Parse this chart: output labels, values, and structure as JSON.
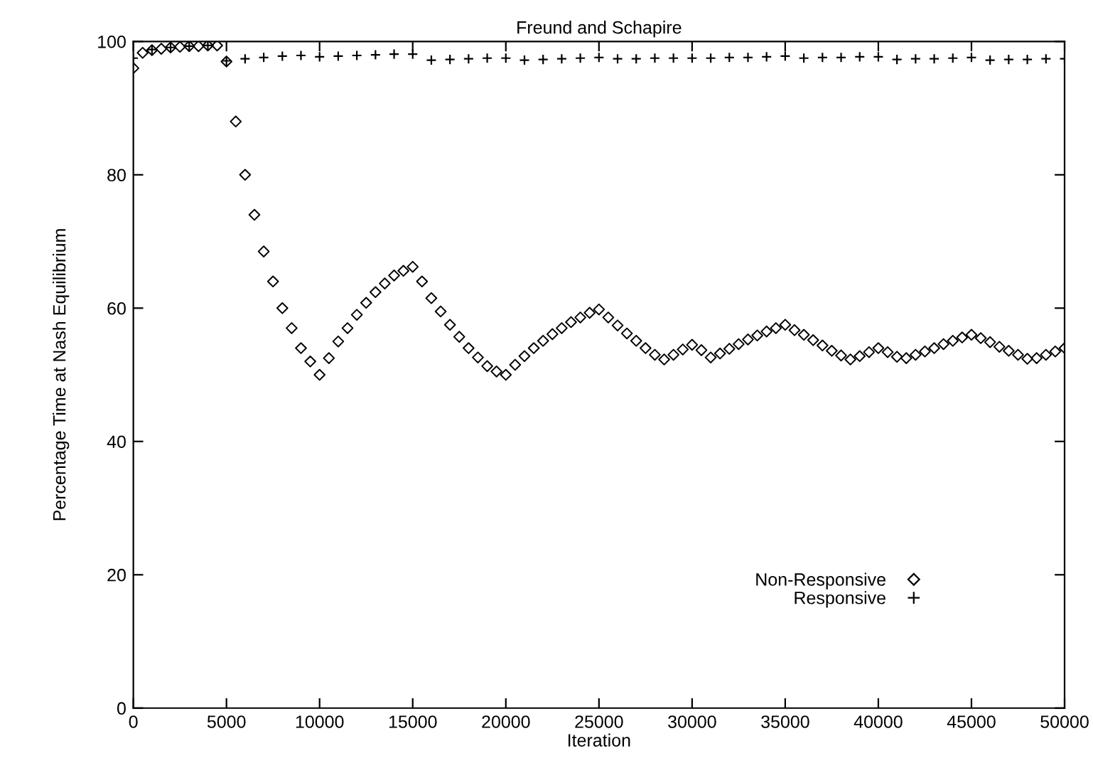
{
  "chart_data": {
    "type": "scatter",
    "title": "Freund and Schapire",
    "xlabel": "Iteration",
    "ylabel": "Percentage Time at Nash Equilibrium",
    "xlim": [
      0,
      50000
    ],
    "ylim": [
      0,
      100
    ],
    "xticks": [
      0,
      5000,
      10000,
      15000,
      20000,
      25000,
      30000,
      35000,
      40000,
      45000,
      50000
    ],
    "yticks": [
      0,
      20,
      40,
      60,
      80,
      100
    ],
    "grid": false,
    "legend": "lower right",
    "series": [
      {
        "name": "Non-Responsive",
        "color": "#000000",
        "marker": "diamond",
        "x": [
          0,
          500,
          1000,
          1500,
          2000,
          2500,
          3000,
          3500,
          4000,
          4500,
          5000,
          5500,
          6000,
          6500,
          7000,
          7500,
          8000,
          8500,
          9000,
          9500,
          10000,
          10500,
          11000,
          11500,
          12000,
          12500,
          13000,
          13500,
          14000,
          14500,
          15000,
          15500,
          16000,
          16500,
          17000,
          17500,
          18000,
          18500,
          19000,
          19500,
          20000,
          20500,
          21000,
          21500,
          22000,
          22500,
          23000,
          23500,
          24000,
          24500,
          25000,
          25500,
          26000,
          26500,
          27000,
          27500,
          28000,
          28500,
          29000,
          29500,
          30000,
          30500,
          31000,
          31500,
          32000,
          32500,
          33000,
          33500,
          34000,
          34500,
          35000,
          35500,
          36000,
          36500,
          37000,
          37500,
          38000,
          38500,
          39000,
          39500,
          40000,
          40500,
          41000,
          41500,
          42000,
          42500,
          43000,
          43500,
          44000,
          44500,
          45000,
          45500,
          46000,
          46500,
          47000,
          47500,
          48000,
          48500,
          49000,
          49500,
          50000
        ],
        "values": [
          96,
          98.3,
          98.7,
          98.9,
          99.1,
          99.2,
          99.3,
          99.3,
          99.4,
          99.4,
          97,
          88,
          80,
          74,
          68.5,
          64,
          60,
          57,
          54,
          52,
          50,
          52.5,
          55,
          57,
          59,
          60.8,
          62.4,
          63.7,
          64.9,
          65.6,
          66.2,
          64,
          61.5,
          59.5,
          57.5,
          55.7,
          54,
          52.6,
          51.3,
          50.5,
          50,
          51.5,
          52.8,
          54,
          55.1,
          56.1,
          57,
          57.9,
          58.6,
          59.3,
          59.8,
          58.6,
          57.4,
          56.2,
          55.1,
          54,
          53,
          52.3,
          53,
          53.8,
          54.5,
          53.7,
          52.6,
          53.2,
          53.9,
          54.6,
          55.3,
          55.9,
          56.5,
          57,
          57.5,
          56.7,
          56,
          55.2,
          54.4,
          53.6,
          52.9,
          52.3,
          52.8,
          53.4,
          54,
          53.4,
          52.7,
          52.5,
          53,
          53.5,
          54,
          54.6,
          55.1,
          55.6,
          56,
          55.5,
          54.9,
          54.2,
          53.6,
          53,
          52.4,
          52.5,
          53,
          53.5,
          54
        ]
      },
      {
        "name": "Responsive",
        "color": "#000000",
        "marker": "cross",
        "x": [
          0,
          1000,
          2000,
          3000,
          4000,
          5000,
          6000,
          7000,
          8000,
          9000,
          10000,
          11000,
          12000,
          13000,
          14000,
          15000,
          16000,
          17000,
          18000,
          19000,
          20000,
          21000,
          22000,
          23000,
          24000,
          25000,
          26000,
          27000,
          28000,
          29000,
          30000,
          31000,
          32000,
          33000,
          34000,
          35000,
          36000,
          37000,
          38000,
          39000,
          40000,
          41000,
          42000,
          43000,
          44000,
          45000,
          46000,
          47000,
          48000,
          49000,
          50000
        ],
        "values": [
          97.5,
          98.8,
          99.1,
          99.3,
          99.4,
          97.1,
          97.4,
          97.6,
          97.8,
          97.9,
          97.7,
          97.8,
          97.9,
          98,
          98.1,
          98.1,
          97.2,
          97.3,
          97.4,
          97.5,
          97.5,
          97.2,
          97.3,
          97.4,
          97.5,
          97.6,
          97.4,
          97.4,
          97.5,
          97.5,
          97.5,
          97.5,
          97.6,
          97.6,
          97.7,
          97.8,
          97.5,
          97.6,
          97.6,
          97.7,
          97.7,
          97.3,
          97.4,
          97.4,
          97.5,
          97.6,
          97.2,
          97.3,
          97.3,
          97.4,
          97.4
        ]
      }
    ]
  }
}
